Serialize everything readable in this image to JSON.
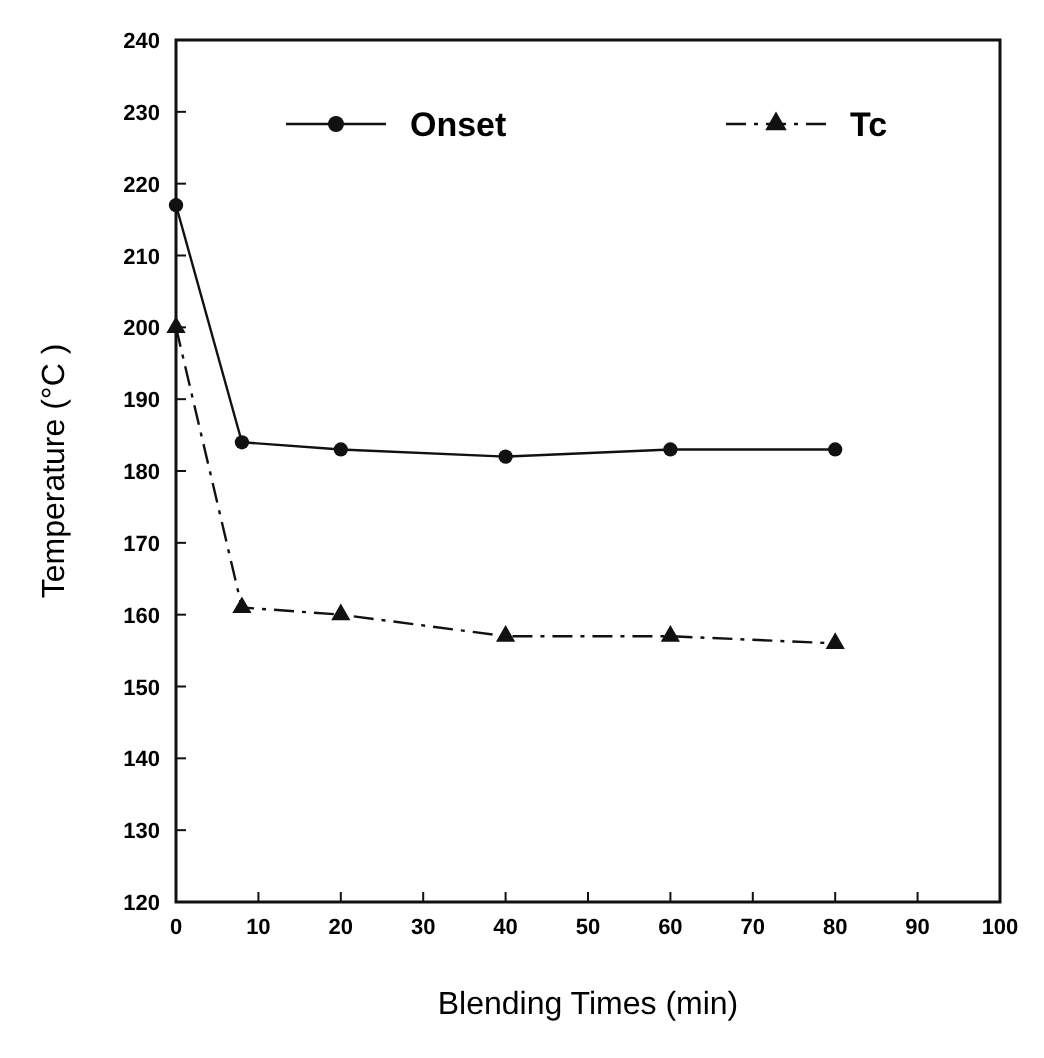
{
  "chart_data": {
    "type": "line",
    "xlabel": "Blending Times (min)",
    "ylabel": "Temperature (°C )",
    "x": [
      0,
      8,
      20,
      40,
      60,
      80
    ],
    "series": [
      {
        "name": "Onset",
        "color": "#111111",
        "values": [
          217,
          184,
          183,
          182,
          183,
          183
        ],
        "marker": "circle",
        "line_style": "solid"
      },
      {
        "name": "Tc",
        "color": "#111111",
        "values": [
          200,
          161,
          160,
          157,
          157,
          156
        ],
        "marker": "triangle",
        "line_style": "dashed"
      }
    ],
    "xlim": [
      0,
      100
    ],
    "xticks": [
      0,
      10,
      20,
      30,
      40,
      50,
      60,
      70,
      80,
      90,
      100
    ],
    "ylim": [
      120,
      240
    ],
    "yticks": [
      120,
      130,
      140,
      150,
      160,
      170,
      180,
      190,
      200,
      210,
      220,
      230,
      240
    ],
    "grid": false,
    "legend": "top"
  }
}
